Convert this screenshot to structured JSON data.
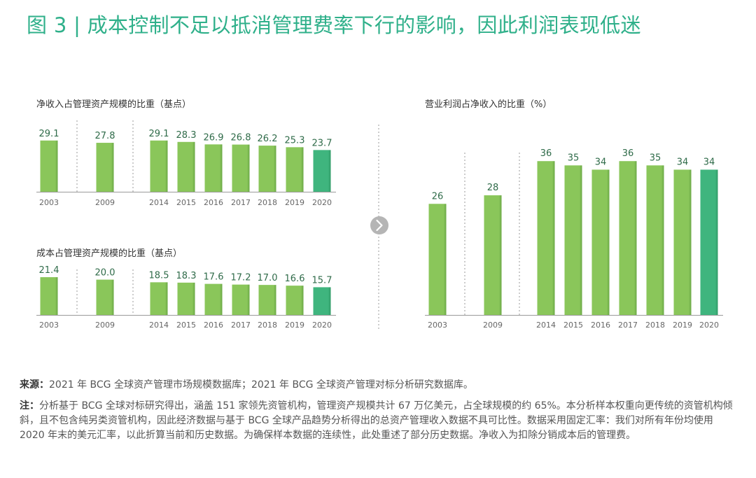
{
  "title": "图 3 | 成本控制不足以抵消管理费率下行的影响，因此利润表现低迷",
  "colors": {
    "bar": "#8ac65a",
    "highlight": "#3fb57e",
    "title": "#2fb08a"
  },
  "icons": {
    "arrow": "chevron-right-icon"
  },
  "chart_data": [
    {
      "type": "bar",
      "title": "净收入占管理资产规模的比重（基点）",
      "categories": [
        "2003",
        "2009",
        "2014",
        "2015",
        "2016",
        "2017",
        "2018",
        "2019",
        "2020"
      ],
      "values": [
        29.1,
        27.8,
        29.1,
        28.3,
        26.9,
        26.8,
        26.2,
        25.3,
        23.7
      ],
      "labels": [
        "29.1",
        "27.8",
        "29.1",
        "28.3",
        "26.9",
        "26.8",
        "26.2",
        "25.3",
        "23.7"
      ],
      "highlight_category": "2020",
      "xlabel": "",
      "ylabel": "",
      "ylim": [
        0,
        31
      ]
    },
    {
      "type": "bar",
      "title": "成本占管理资产规模的比重（基点）",
      "categories": [
        "2003",
        "2009",
        "2014",
        "2015",
        "2016",
        "2017",
        "2018",
        "2019",
        "2020"
      ],
      "values": [
        21.4,
        20.0,
        18.5,
        18.3,
        17.6,
        17.2,
        17.0,
        16.6,
        15.7
      ],
      "labels": [
        "21.4",
        "20.0",
        "18.5",
        "18.3",
        "17.6",
        "17.2",
        "17.0",
        "16.6",
        "15.7"
      ],
      "highlight_category": "2020",
      "xlabel": "",
      "ylabel": "",
      "ylim": [
        0,
        23
      ]
    },
    {
      "type": "bar",
      "title": "营业利润占净收入的比重（%）",
      "categories": [
        "2003",
        "2009",
        "2014",
        "2015",
        "2016",
        "2017",
        "2018",
        "2019",
        "2020"
      ],
      "values": [
        26,
        28,
        36,
        35,
        34,
        36,
        35,
        34,
        34
      ],
      "labels": [
        "26",
        "28",
        "36",
        "35",
        "34",
        "36",
        "35",
        "34",
        "34"
      ],
      "highlight_category": "2020",
      "xlabel": "",
      "ylabel": "",
      "ylim": [
        0,
        38
      ]
    }
  ],
  "source": {
    "label": "来源：",
    "text": "2021 年 BCG 全球资产管理市场规模数据库；2021 年 BCG 全球资产管理对标分析研究数据库。"
  },
  "note": {
    "label": "注：",
    "text": "分析基于 BCG 全球对标研究得出，涵盖 151 家领先资管机构，管理资产规模共计 67 万亿美元，占全球规模的约 65%。本分析样本权重向更传统的资管机构倾斜，且不包含纯另类资管机构，因此经济数据与基于 BCG 全球产品趋势分析得出的总资产管理收入数据不具可比性。数据采用固定汇率：我们对所有年份均使用 2020 年末的美元汇率，以此折算当前和历史数据。为确保样本数据的连续性，此处重述了部分历史数据。净收入为扣除分销成本后的管理费。"
  }
}
